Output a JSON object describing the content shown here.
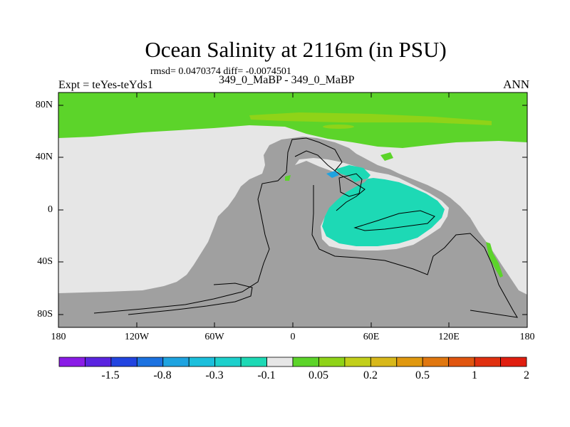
{
  "title": "Ocean Salinity at 2116m (in PSU)",
  "stats": "rmsd= 0.0470374 diff= -0.0074501",
  "subtitle": "349_0_MaBP - 349_0_MaBP",
  "experiment": "Expt = teYes-teYds1",
  "season": "ANN",
  "colors": {
    "land": "#a0a0a0",
    "background_field": "#e6e6e6",
    "positive_high": "#5cd42a",
    "positive_low": "#8fd318",
    "negative_low": "#1dd9b5",
    "negative_mid": "#1ea3e0",
    "coast": "#000000"
  },
  "map": {
    "y_ticks": [
      "80N",
      "40N",
      "0",
      "40S",
      "80S"
    ],
    "x_ticks": [
      "180",
      "120W",
      "60W",
      "0",
      "60E",
      "120E",
      "180"
    ]
  },
  "colorbar": {
    "colors": [
      "#8a1ce6",
      "#5a24e0",
      "#2244e0",
      "#1c72e0",
      "#1ea3e0",
      "#1cbfdc",
      "#1dd0cc",
      "#1dd9b5",
      "#e6e6e6",
      "#5cd42a",
      "#8fd318",
      "#c2cf1a",
      "#d8b81a",
      "#e0980f",
      "#e0770f",
      "#e0550f",
      "#e0300f",
      "#e01e0f"
    ],
    "labels": [
      "-1.5",
      "-0.8",
      "-0.3",
      "-0.1",
      "0.05",
      "0.2",
      "0.5",
      "1",
      "2"
    ]
  }
}
